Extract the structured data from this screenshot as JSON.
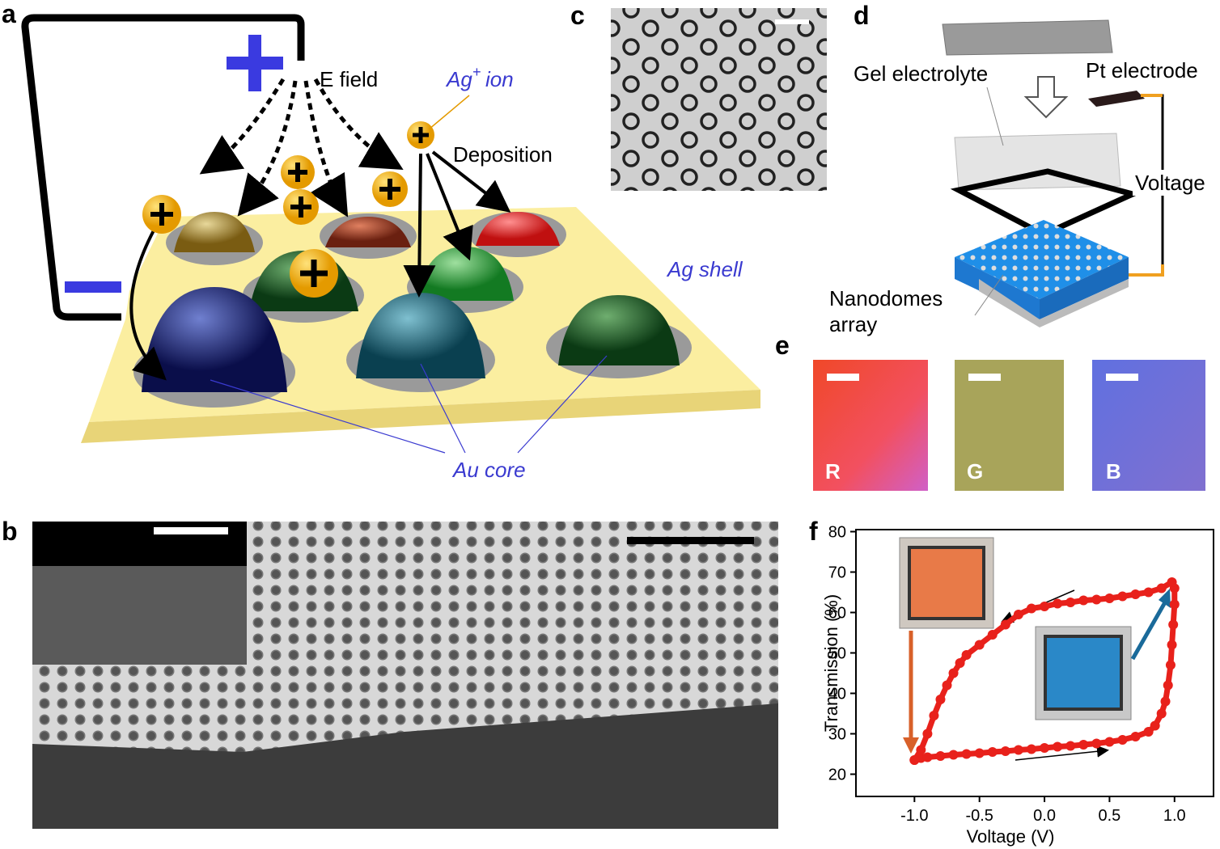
{
  "panel_labels": [
    "a",
    "b",
    "c",
    "d",
    "e",
    "f"
  ],
  "panel_a": {
    "e_field": "E field",
    "ag_ion": {
      "base": "Ag",
      "superscript": "+",
      "suffix": "ion"
    },
    "deposition": "Deposition",
    "ag_shell": "Ag shell",
    "au_core": "Au core"
  },
  "panel_d": {
    "gel_electrolyte": "Gel electrolyte",
    "pt_electrode": "Pt electrode",
    "voltage": "Voltage",
    "nanodomes_array": [
      "Nanodomes",
      "array"
    ]
  },
  "panel_e": {
    "labels": [
      "R",
      "G",
      "B"
    ]
  },
  "chart_data": {
    "type": "line",
    "xlabel": "Voltage (V)",
    "ylabel": "Transmission (%)",
    "xlim": [
      -1.45,
      1.3
    ],
    "ylim": [
      14.5,
      80.5
    ],
    "xticks": [
      {
        "value": -1,
        "label": "-1.0"
      },
      -0.5,
      {
        "value": 0,
        "label": "0.0"
      },
      0.5,
      {
        "value": 1,
        "label": "1.0"
      }
    ],
    "yticks": [
      20,
      30,
      40,
      50,
      60,
      70,
      80
    ],
    "x": [
      -1.0,
      -0.95,
      -0.9,
      -0.8,
      -0.7,
      -0.6,
      -0.5,
      -0.4,
      -0.3,
      -0.2,
      -0.1,
      0,
      0.1,
      0.2,
      0.3,
      0.4,
      0.5,
      0.6,
      0.7,
      0.8,
      0.85,
      0.9,
      0.93,
      0.95,
      0.97,
      0.98,
      0.99,
      1.0,
      1.0,
      0.98,
      0.9,
      0.8,
      0.7,
      0.6,
      0.5,
      0.4,
      0.3,
      0.2,
      0.1,
      0,
      -0.1,
      -0.2,
      -0.3,
      -0.4,
      -0.5,
      -0.6,
      -0.65,
      -0.7,
      -0.75,
      -0.8,
      -0.85,
      -0.9,
      -0.95,
      -1.0
    ],
    "series": [
      {
        "color": "#e8211b",
        "values": [
          23.5,
          24,
          24.2,
          24.5,
          24.8,
          25,
          25.2,
          25.5,
          25.7,
          26,
          26.2,
          26.5,
          26.8,
          27,
          27.3,
          27.6,
          28,
          28.5,
          29.3,
          30.5,
          32,
          35,
          38,
          42,
          47,
          52,
          57,
          62,
          66,
          67.5,
          66,
          65,
          64.5,
          64,
          63.5,
          63.2,
          63,
          62.5,
          62.2,
          61.5,
          61,
          59.5,
          57,
          54.5,
          52,
          49.5,
          47.5,
          45,
          42,
          38.5,
          34.5,
          30,
          26,
          23.5
        ]
      }
    ]
  }
}
